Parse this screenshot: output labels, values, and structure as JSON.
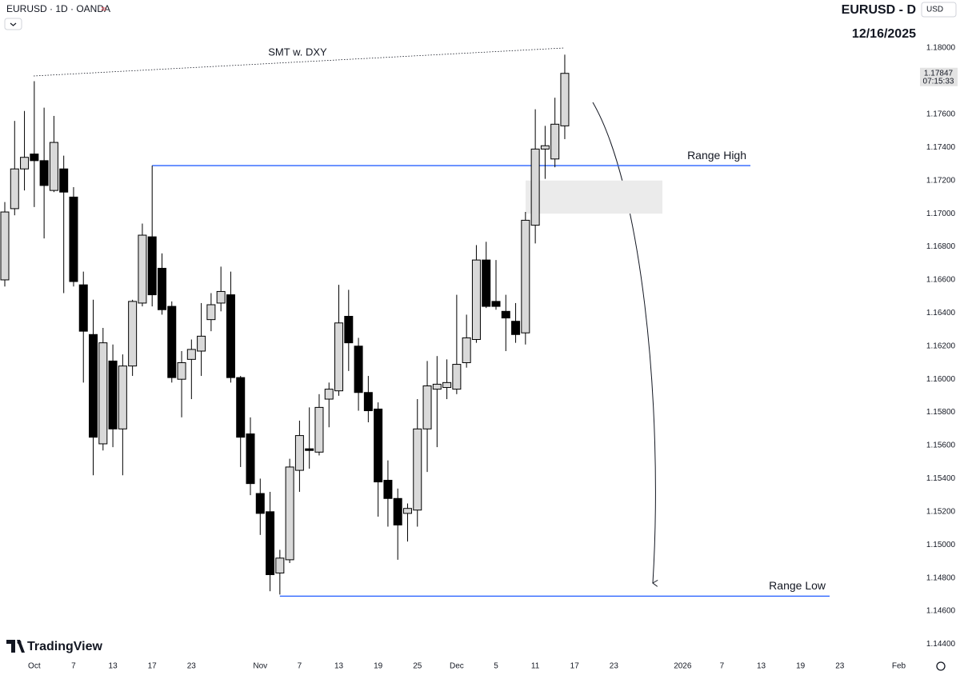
{
  "header": {
    "symbol": "EURUSD · 1D · OANDA",
    "currency": "USD",
    "brand": "TradingView"
  },
  "chart_data": {
    "type": "candlestick",
    "title": "EURUSD - D",
    "subtitle": "12/16/2025",
    "categories": [
      null,
      null,
      null,
      "Oct",
      null,
      null,
      null,
      "7",
      null,
      null,
      null,
      "13",
      null,
      null,
      null,
      "17",
      null,
      null,
      null,
      "23",
      null,
      null,
      null,
      null,
      null,
      null,
      "Nov",
      null,
      null,
      null,
      "7",
      null,
      null,
      null,
      "13",
      null,
      null,
      null,
      "19",
      null,
      null,
      null,
      "25",
      null,
      null,
      null,
      "Dec",
      null,
      null,
      null,
      "5",
      null,
      null,
      null,
      "11",
      null,
      null,
      null,
      "17",
      null,
      null,
      null,
      "23",
      null,
      null,
      null,
      null,
      null,
      null,
      "2026",
      null,
      null,
      null,
      "7",
      null,
      null,
      null,
      "13",
      null,
      null,
      null,
      "19",
      null,
      null,
      null,
      "23",
      null,
      null,
      null,
      null,
      null,
      "Feb"
    ],
    "open": [
      1.166,
      1.1703,
      1.1727,
      1.1736,
      1.1732,
      1.1714,
      1.1727,
      1.171,
      1.1657,
      1.1627,
      1.1561,
      1.1611,
      1.157,
      1.1608,
      1.1646,
      1.1686,
      1.1667,
      1.1644,
      1.16,
      1.1612,
      1.1617,
      1.1636,
      1.1646,
      1.1651,
      1.1601,
      1.1567,
      1.1531,
      1.152,
      1.1483,
      1.1491,
      1.1545,
      1.1558,
      1.1556,
      1.1588,
      1.1593,
      1.1638,
      1.162,
      1.1592,
      1.1582,
      1.1539,
      1.1528,
      1.1519,
      1.1521,
      1.157,
      1.1594,
      1.1595,
      1.1594,
      1.161,
      1.1624,
      1.1672,
      1.1647,
      1.1641,
      1.1635,
      1.1628,
      1.1693,
      1.1739,
      1.1733,
      1.1753,
      null,
      null,
      null,
      null,
      null,
      null,
      null,
      null,
      null,
      null,
      null,
      null,
      null,
      null,
      null,
      null,
      null,
      null,
      null,
      null,
      null,
      null,
      null,
      null,
      null,
      null,
      null,
      null,
      null,
      null,
      null,
      null,
      null,
      null
    ],
    "high": [
      1.1707,
      1.1756,
      1.1762,
      1.178,
      1.1764,
      1.1759,
      1.1735,
      1.1716,
      1.1665,
      1.1648,
      1.1631,
      1.1621,
      1.1615,
      1.1648,
      1.1694,
      1.1729,
      1.1676,
      1.1647,
      1.1617,
      1.1624,
      1.1646,
      1.1652,
      1.1668,
      1.1665,
      1.1602,
      1.1577,
      1.154,
      1.1532,
      1.1497,
      1.1552,
      1.1575,
      1.1583,
      1.1591,
      1.1598,
      1.1657,
      1.1654,
      1.1625,
      1.1602,
      1.1586,
      1.1551,
      1.1534,
      1.1525,
      1.1588,
      1.1611,
      1.1614,
      1.1612,
      1.1651,
      1.1639,
      1.1681,
      1.1683,
      1.1672,
      1.1651,
      1.1646,
      1.1701,
      1.1763,
      1.1753,
      1.177,
      1.1796,
      null,
      null,
      null,
      null,
      null,
      null,
      null,
      null,
      null,
      null,
      null,
      null,
      null,
      null,
      null,
      null,
      null,
      null,
      null,
      null,
      null,
      null,
      null,
      null,
      null,
      null,
      null,
      null,
      null,
      null,
      null,
      null,
      null,
      null
    ],
    "low": [
      1.1656,
      1.1699,
      1.1714,
      1.1704,
      1.1685,
      1.1713,
      1.1652,
      1.1656,
      1.1598,
      1.1542,
      1.1557,
      1.1559,
      1.1542,
      1.1602,
      1.1644,
      1.1644,
      1.1639,
      1.1598,
      1.1577,
      1.1588,
      1.1602,
      1.1629,
      1.1641,
      1.1598,
      1.1547,
      1.153,
      1.1506,
      1.1472,
      1.147,
      1.1489,
      1.1532,
      1.1546,
      1.1554,
      1.1571,
      1.159,
      1.1605,
      1.1581,
      1.1574,
      1.1517,
      1.1511,
      1.1491,
      1.1502,
      1.1511,
      1.1544,
      1.1559,
      1.1588,
      1.1591,
      1.1607,
      1.1622,
      1.1643,
      1.1642,
      1.1617,
      1.1622,
      1.1621,
      1.1682,
      1.1721,
      1.1728,
      1.1745,
      null,
      null,
      null,
      null,
      null,
      null,
      null,
      null,
      null,
      null,
      null,
      null,
      null,
      null,
      null,
      null,
      null,
      null,
      null,
      null,
      null,
      null,
      null,
      null,
      null,
      null,
      null,
      null,
      null,
      null,
      null,
      null,
      null,
      null
    ],
    "close": [
      1.1701,
      1.1727,
      1.1734,
      1.1732,
      1.1717,
      1.1743,
      1.1713,
      1.1659,
      1.1629,
      1.1565,
      1.1622,
      1.157,
      1.1608,
      1.1647,
      1.1687,
      1.1651,
      1.1642,
      1.1601,
      1.161,
      1.1618,
      1.1626,
      1.1645,
      1.1653,
      1.1601,
      1.1565,
      1.1537,
      1.1519,
      1.1482,
      1.1492,
      1.1547,
      1.1566,
      1.1557,
      1.1583,
      1.1594,
      1.1634,
      1.1622,
      1.1592,
      1.1581,
      1.1538,
      1.1528,
      1.1512,
      1.1522,
      1.157,
      1.1596,
      1.1597,
      1.1598,
      1.1609,
      1.1625,
      1.1672,
      1.1644,
      1.1644,
      1.1637,
      1.1627,
      1.1696,
      1.1739,
      1.1741,
      1.1754,
      1.17847,
      null,
      null,
      null,
      null,
      null,
      null,
      null,
      null,
      null,
      null,
      null,
      null,
      null,
      null,
      null,
      null,
      null,
      null,
      null,
      null,
      null,
      null,
      null,
      null,
      null,
      null,
      null,
      null,
      null,
      null,
      null,
      null,
      null,
      null
    ],
    "up_color": "#d9d9d9",
    "down_color": "#000000",
    "ylim": [
      1.1433,
      1.1829
    ],
    "yticks": [
      {
        "value": 1.144,
        "label": "1.14400"
      },
      {
        "value": 1.146,
        "label": "1.14600"
      },
      {
        "value": 1.148,
        "label": "1.14800"
      },
      {
        "value": 1.15,
        "label": "1.15000"
      },
      {
        "value": 1.152,
        "label": "1.15200"
      },
      {
        "value": 1.154,
        "label": "1.15400"
      },
      {
        "value": 1.156,
        "label": "1.15600"
      },
      {
        "value": 1.158,
        "label": "1.15800"
      },
      {
        "value": 1.16,
        "label": "1.16000"
      },
      {
        "value": 1.162,
        "label": "1.16200"
      },
      {
        "value": 1.164,
        "label": "1.16400"
      },
      {
        "value": 1.166,
        "label": "1.16600"
      },
      {
        "value": 1.168,
        "label": "1.16800"
      },
      {
        "value": 1.17,
        "label": "1.17000"
      },
      {
        "value": 1.172,
        "label": "1.17200"
      },
      {
        "value": 1.174,
        "label": "1.17400"
      },
      {
        "value": 1.176,
        "label": "1.17600"
      },
      {
        "value": 1.178,
        "label": "1.17800"
      },
      {
        "value": 1.18,
        "label": "1.18000"
      }
    ],
    "last_price": 1.17847,
    "countdown": "07:15:33",
    "annotations": [
      {
        "text": "SMT w. DXY"
      },
      {
        "text": "Range High",
        "value": 1.1729
      },
      {
        "text": "Range Low",
        "value": 1.1469
      }
    ],
    "level_color": "#2962ff",
    "zone": [
      1.17,
      1.172
    ]
  }
}
